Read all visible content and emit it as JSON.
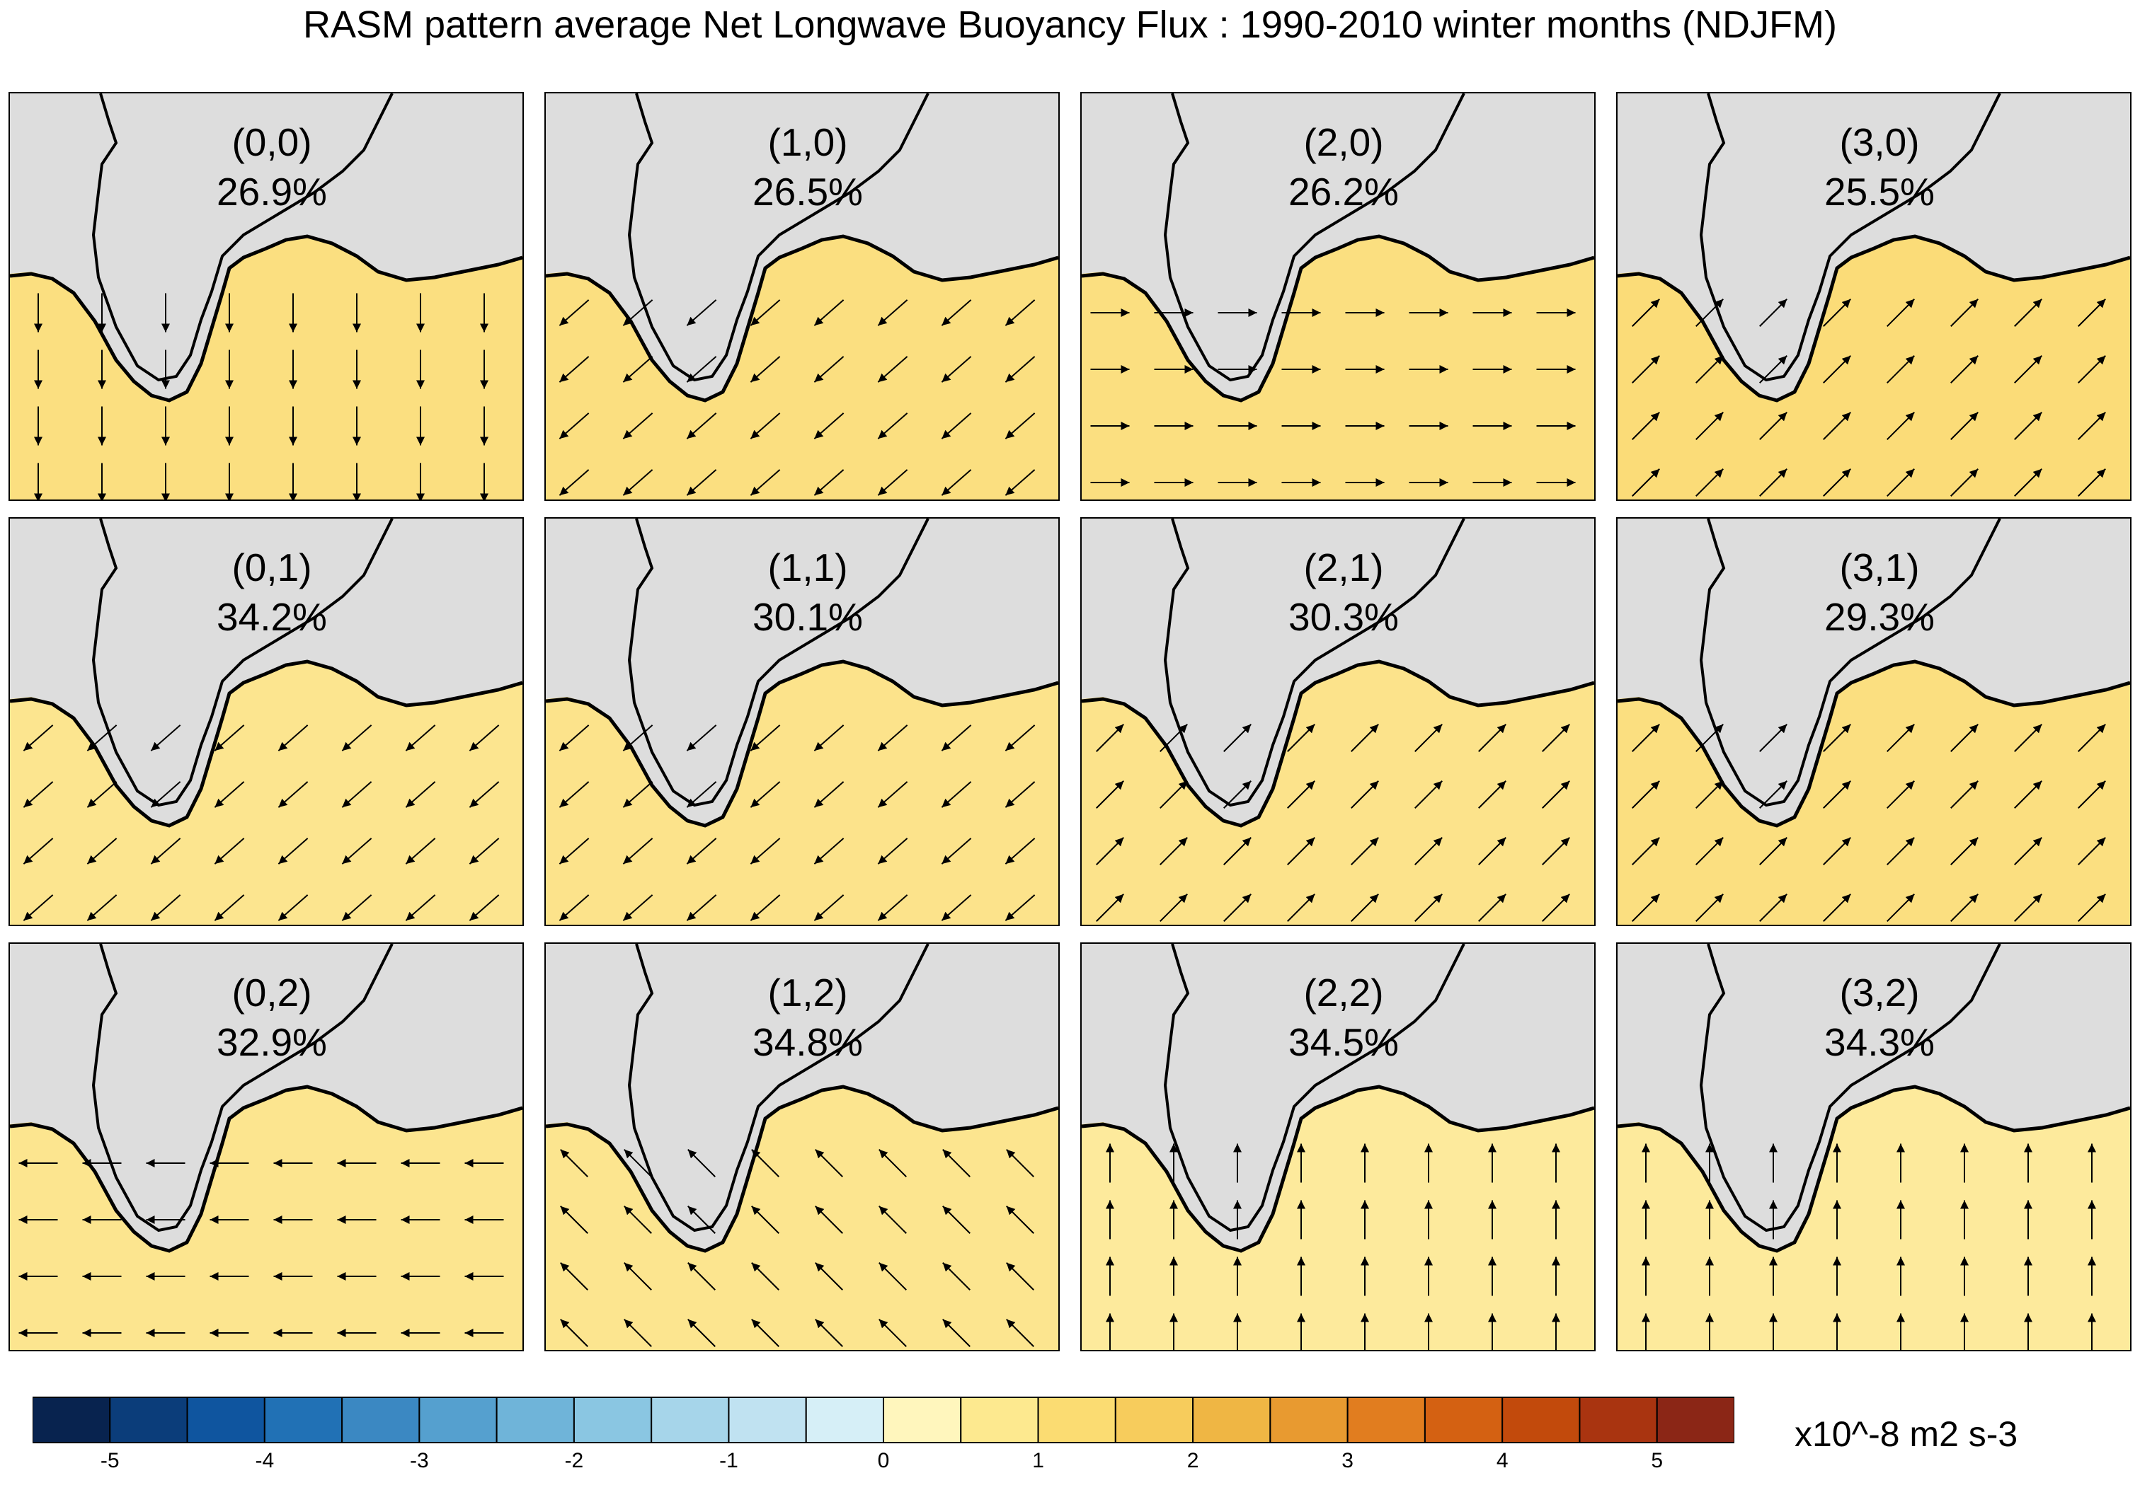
{
  "title": "RASM pattern average Net Longwave Buoyancy Flux : 1990-2010 winter months (NDJFM)",
  "panels": [
    {
      "label": "(0,0)",
      "percent": "26.9%",
      "arrow_dir": "south",
      "ocean_color": "#fbdf80"
    },
    {
      "label": "(1,0)",
      "percent": "26.5%",
      "arrow_dir": "southwest",
      "ocean_color": "#fbdf80"
    },
    {
      "label": "(2,0)",
      "percent": "26.2%",
      "arrow_dir": "east",
      "ocean_color": "#fbdf80"
    },
    {
      "label": "(3,0)",
      "percent": "25.5%",
      "arrow_dir": "northeast",
      "ocean_color": "#fbdc78"
    },
    {
      "label": "(0,1)",
      "percent": "34.2%",
      "arrow_dir": "southwest",
      "ocean_color": "#fce58f"
    },
    {
      "label": "(1,1)",
      "percent": "30.1%",
      "arrow_dir": "southwest",
      "ocean_color": "#fce38b"
    },
    {
      "label": "(2,1)",
      "percent": "30.3%",
      "arrow_dir": "northeast",
      "ocean_color": "#fce38b"
    },
    {
      "label": "(3,1)",
      "percent": "29.3%",
      "arrow_dir": "northeast",
      "ocean_color": "#fbdf80"
    },
    {
      "label": "(0,2)",
      "percent": "32.9%",
      "arrow_dir": "west",
      "ocean_color": "#fce58f"
    },
    {
      "label": "(1,2)",
      "percent": "34.8%",
      "arrow_dir": "northwest",
      "ocean_color": "#fce58f"
    },
    {
      "label": "(2,2)",
      "percent": "34.5%",
      "arrow_dir": "north",
      "ocean_color": "#fdea9c"
    },
    {
      "label": "(3,2)",
      "percent": "34.3%",
      "arrow_dir": "north",
      "ocean_color": "#fdea9c"
    }
  ],
  "colorbar": {
    "colors": [
      "#08234f",
      "#0b3d7a",
      "#0f559f",
      "#2171b5",
      "#3b88c2",
      "#55a0cf",
      "#6fb4d9",
      "#8ac6e2",
      "#a6d5ea",
      "#c0e2f1",
      "#d6eff7",
      "#fff6bd",
      "#fde98f",
      "#fbdc72",
      "#f7cc5c",
      "#efb644",
      "#e89a30",
      "#e17d1f",
      "#d46112",
      "#c24a0c",
      "#a93410",
      "#8b2616"
    ],
    "tick_labels": [
      "-5",
      "-4",
      "-3",
      "-2",
      "-1",
      "0",
      "1",
      "2",
      "3",
      "4",
      "5"
    ]
  },
  "units": "x10^-8 m2 s-3",
  "land_color": "#dddddd"
}
